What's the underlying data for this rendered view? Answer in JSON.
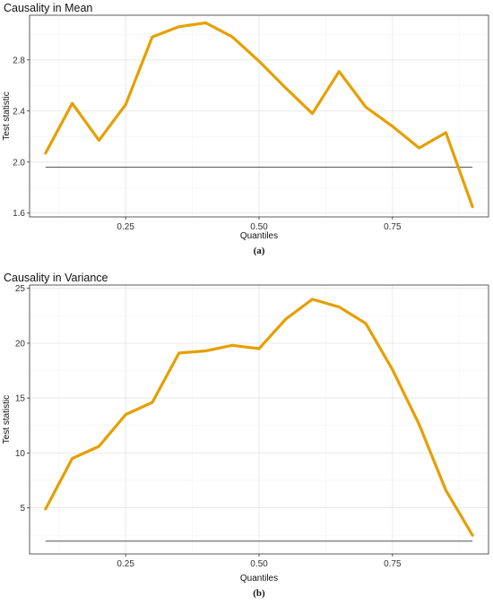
{
  "colors": {
    "series": "#E69F00",
    "reference": "#555555"
  },
  "chart_data": [
    {
      "type": "line",
      "title": "Causality in Mean",
      "xlabel": "Quantiles",
      "ylabel": "Test statistic",
      "caption": "(a)",
      "xlim": [
        0.07,
        0.93
      ],
      "ylim": [
        1.57,
        3.15
      ],
      "xticks": [
        0.25,
        0.5,
        0.75
      ],
      "xtick_labels": [
        "0.25",
        "0.50",
        "0.75"
      ],
      "yticks": [
        1.6,
        2.0,
        2.4,
        2.8
      ],
      "ytick_labels": [
        "1.6",
        "2.0",
        "2.4",
        "2.8"
      ],
      "grid": true,
      "x": [
        0.1,
        0.15,
        0.2,
        0.25,
        0.3,
        0.35,
        0.4,
        0.45,
        0.5,
        0.55,
        0.6,
        0.65,
        0.7,
        0.75,
        0.8,
        0.85,
        0.9
      ],
      "values": [
        2.07,
        2.46,
        2.17,
        2.45,
        2.98,
        3.06,
        3.09,
        2.98,
        2.79,
        2.58,
        2.38,
        2.71,
        2.43,
        2.28,
        2.11,
        2.23,
        1.65
      ],
      "reference_line": {
        "y": 1.96,
        "x": [
          0.1,
          0.9
        ]
      }
    },
    {
      "type": "line",
      "title": "Causality in Variance",
      "xlabel": "Quantiles",
      "ylabel": "Test statistic",
      "caption": "(b)",
      "xlim": [
        0.07,
        0.93
      ],
      "ylim": [
        0.8,
        25.3
      ],
      "xticks": [
        0.25,
        0.5,
        0.75
      ],
      "xtick_labels": [
        "0.25",
        "0.50",
        "0.75"
      ],
      "yticks": [
        5,
        10,
        15,
        20,
        25
      ],
      "ytick_labels": [
        "5",
        "10",
        "15",
        "20",
        "25"
      ],
      "grid": true,
      "x": [
        0.1,
        0.15,
        0.2,
        0.25,
        0.3,
        0.35,
        0.4,
        0.45,
        0.5,
        0.55,
        0.6,
        0.65,
        0.7,
        0.75,
        0.8,
        0.85,
        0.9
      ],
      "values": [
        4.9,
        9.5,
        10.6,
        13.5,
        14.6,
        19.1,
        19.3,
        19.8,
        19.5,
        22.2,
        24.0,
        23.3,
        21.8,
        17.6,
        12.6,
        6.6,
        2.5
      ],
      "reference_line": {
        "y": 1.96,
        "x": [
          0.1,
          0.9
        ]
      }
    }
  ]
}
